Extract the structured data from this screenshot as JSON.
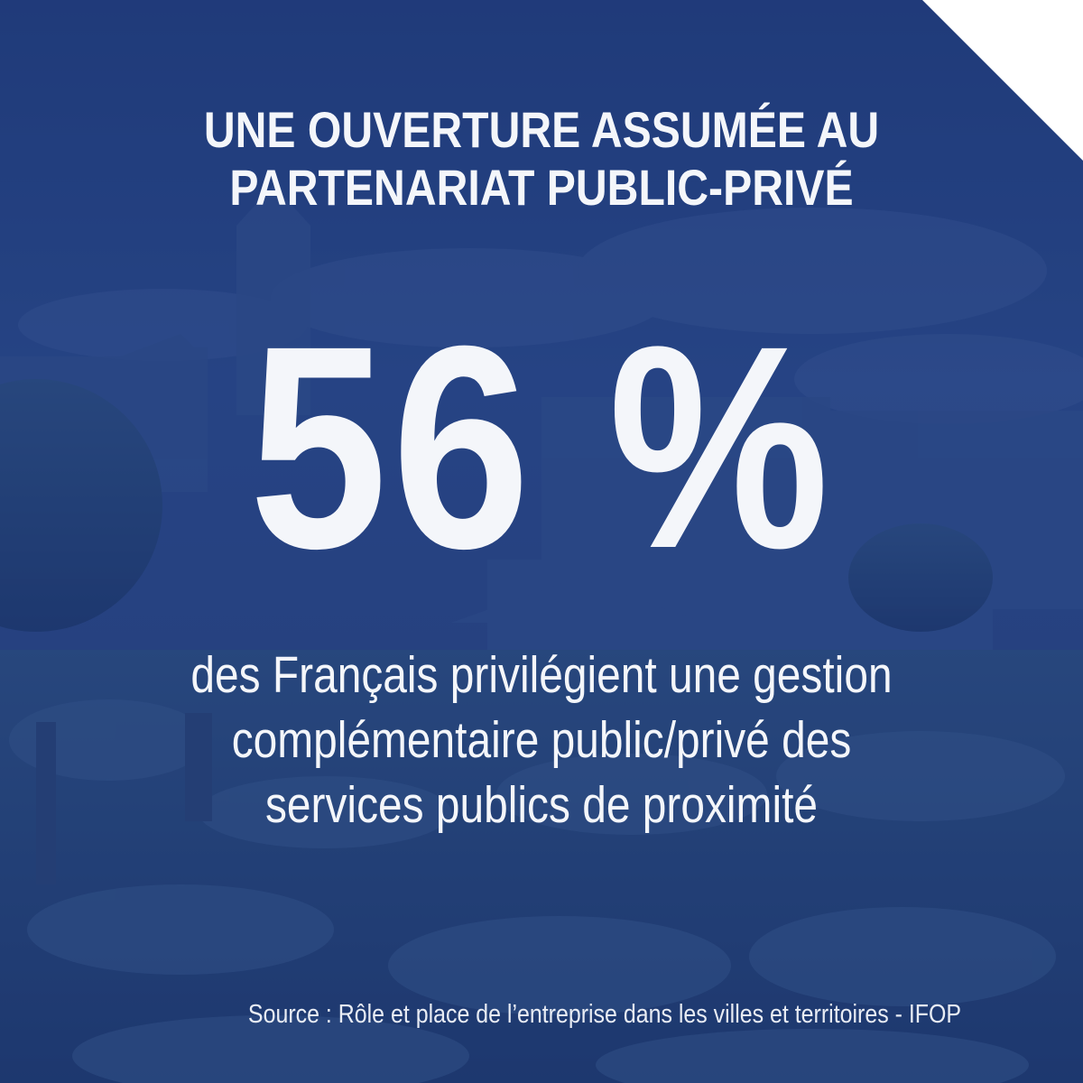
{
  "graphic": {
    "title": "UNE OUVERTURE ASSUMÉE AU PARTENARIAT PUBLIC-PRIVÉ",
    "statistic": "56 %",
    "description": "des Français privilégient une gestion complémentaire public/privé des services publics de proximité",
    "source": "Source : Rôle et place de l’entreprise dans les villes et territoires - IFOP"
  },
  "colors": {
    "overlay": "#233f7e",
    "text": "#f4f6fa",
    "corner": "#ffffff"
  }
}
